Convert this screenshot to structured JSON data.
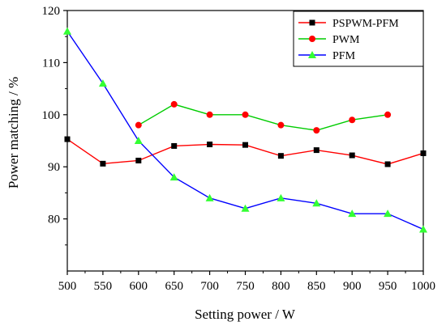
{
  "chart_data": {
    "type": "line",
    "xlabel": "Setting power / W",
    "ylabel": "Power matching / %",
    "xlim": [
      500,
      1000
    ],
    "ylim": [
      70,
      120
    ],
    "x_ticks": [
      500,
      550,
      600,
      650,
      700,
      750,
      800,
      850,
      900,
      950,
      1000
    ],
    "y_ticks": [
      80,
      90,
      100,
      110,
      120
    ],
    "grid": false,
    "legend_position": "top-right",
    "series": [
      {
        "name": "PSPWM-PFM",
        "color": "#ff0000",
        "marker": "square",
        "marker_color": "#000000",
        "points": [
          [
            500,
            95.3
          ],
          [
            550,
            90.6
          ],
          [
            600,
            91.2
          ],
          [
            650,
            94.0
          ],
          [
            700,
            94.3
          ],
          [
            750,
            94.2
          ],
          [
            800,
            92.1
          ],
          [
            850,
            93.2
          ],
          [
            900,
            92.2
          ],
          [
            950,
            90.5
          ],
          [
            1000,
            92.6
          ]
        ]
      },
      {
        "name": "PWM",
        "color": "#00cc00",
        "marker": "circle",
        "marker_color": "#ff0000",
        "points": [
          [
            600,
            98
          ],
          [
            650,
            102
          ],
          [
            700,
            100
          ],
          [
            750,
            100
          ],
          [
            800,
            98
          ],
          [
            850,
            97
          ],
          [
            900,
            99
          ],
          [
            950,
            100
          ]
        ]
      },
      {
        "name": "PFM",
        "color": "#0000ff",
        "marker": "triangle",
        "marker_color": "#33ff33",
        "points": [
          [
            500,
            116
          ],
          [
            550,
            106
          ],
          [
            600,
            95
          ],
          [
            650,
            88
          ],
          [
            700,
            84
          ],
          [
            750,
            82
          ],
          [
            800,
            84
          ],
          [
            850,
            83
          ],
          [
            900,
            81
          ],
          [
            950,
            81
          ],
          [
            1000,
            78
          ]
        ]
      }
    ]
  }
}
